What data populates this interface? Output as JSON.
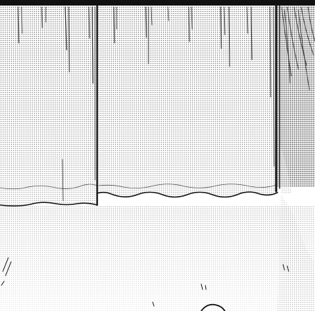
{
  "scene": {
    "kind": "manga-panel",
    "palette": {
      "ink": "#111111",
      "screentone": "#8a8a8a",
      "paper": "#ffffff"
    }
  }
}
